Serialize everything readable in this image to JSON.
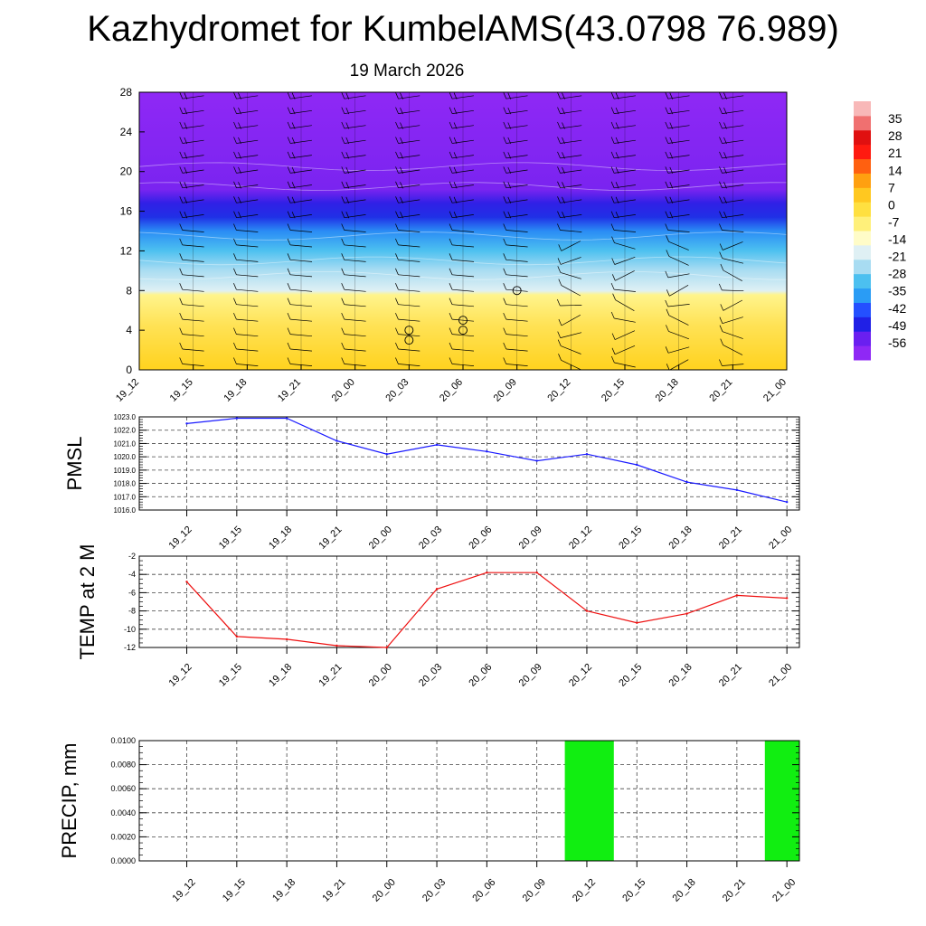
{
  "title": "Kazhydromet for KumbelAMS(43.0798 76.989)",
  "subtitle": "19 March 2026",
  "colors": {
    "pmsl_line": "#1a1aff",
    "temp_line": "#ee1111",
    "precip_bar": "#11ee11",
    "colormap": [
      "#8f28f5",
      "#6a1ff0",
      "#2020e6",
      "#2450ff",
      "#2a9cf5",
      "#4cc0f0",
      "#a8dcf2",
      "#dff0f4",
      "#fffcc8",
      "#fff07a",
      "#ffe040",
      "#ffc820",
      "#ffa010",
      "#ff6010",
      "#ff1a10",
      "#e01010",
      "#f07070",
      "#f8b8b8"
    ]
  },
  "chart_data": [
    {
      "type": "heatmap",
      "name": "cross-section",
      "x_labels": [
        "19_12",
        "19_15",
        "19_18",
        "19_21",
        "20_00",
        "20_03",
        "20_06",
        "20_09",
        "20_12",
        "20_15",
        "20_18",
        "20_21",
        "21_00"
      ],
      "yticks": [
        "0",
        "4",
        "8",
        "12",
        "16",
        "20",
        "24",
        "28"
      ],
      "ylim": [
        0,
        28
      ],
      "colorbar_labels": [
        "35",
        "28",
        "21",
        "14",
        "7",
        "0",
        "-7",
        "-14",
        "-21",
        "-28",
        "-35",
        "-42",
        "-49",
        "-56"
      ],
      "colorbar_range": [
        -63,
        42
      ],
      "value_bands": [
        {
          "from": 0,
          "to": 8,
          "value": -3
        },
        {
          "from": 8,
          "to": 10,
          "value": -15
        },
        {
          "from": 10,
          "to": 13,
          "value": -22
        },
        {
          "from": 13,
          "to": 15,
          "value": -35
        },
        {
          "from": 15,
          "to": 17,
          "value": -55
        },
        {
          "from": 17,
          "to": 28,
          "value": -62
        }
      ],
      "circle_markers": [
        {
          "x": "20_03",
          "y": 3
        },
        {
          "x": "20_03",
          "y": 4
        },
        {
          "x": "20_06",
          "y": 4
        },
        {
          "x": "20_06",
          "y": 5
        },
        {
          "x": "20_09",
          "y": 8
        }
      ]
    },
    {
      "type": "line",
      "name": "PMSL",
      "ylabel": "PMSL",
      "x": [
        "19_12",
        "19_15",
        "19_18",
        "19_21",
        "20_00",
        "20_03",
        "20_06",
        "20_09",
        "20_12",
        "20_15",
        "20_18",
        "20_21",
        "21_00"
      ],
      "values": [
        1022.5,
        1022.9,
        1022.9,
        1021.2,
        1020.2,
        1020.9,
        1020.4,
        1019.7,
        1020.2,
        1019.4,
        1018.1,
        1017.5,
        1016.6
      ],
      "ylim": [
        1016.0,
        1023.0
      ],
      "yticks": [
        "1016.0",
        "1017.0",
        "1018.0",
        "1019.0",
        "1020.0",
        "1021.0",
        "1022.0",
        "1023.0"
      ]
    },
    {
      "type": "line",
      "name": "TEMP at 2 M",
      "ylabel": "TEMP at 2 M",
      "x": [
        "19_12",
        "19_15",
        "19_18",
        "19_21",
        "20_00",
        "20_03",
        "20_06",
        "20_09",
        "20_12",
        "20_15",
        "20_18",
        "20_21",
        "21_00"
      ],
      "values": [
        -4.8,
        -10.8,
        -11.1,
        -11.8,
        -12.0,
        -5.6,
        -3.8,
        -3.8,
        -8.0,
        -9.3,
        -8.3,
        -6.3,
        -6.6
      ],
      "ylim": [
        -12,
        -2
      ],
      "yticks": [
        "-12",
        "-10",
        "-8",
        "-6",
        "-4",
        "-2"
      ]
    },
    {
      "type": "bar",
      "name": "PRECIP",
      "ylabel": "PRECIP, mm",
      "x": [
        "19_12",
        "19_15",
        "19_18",
        "19_21",
        "20_00",
        "20_03",
        "20_06",
        "20_09",
        "20_12",
        "20_15",
        "20_18",
        "20_21",
        "21_00"
      ],
      "values": [
        0,
        0,
        0,
        0,
        0,
        0,
        0,
        0,
        0.01,
        0,
        0,
        0,
        0.01
      ],
      "ylim": [
        0,
        0.01
      ],
      "yticks": [
        "0.0000",
        "0.0020",
        "0.0040",
        "0.0060",
        "0.0080",
        "0.0100"
      ]
    }
  ]
}
